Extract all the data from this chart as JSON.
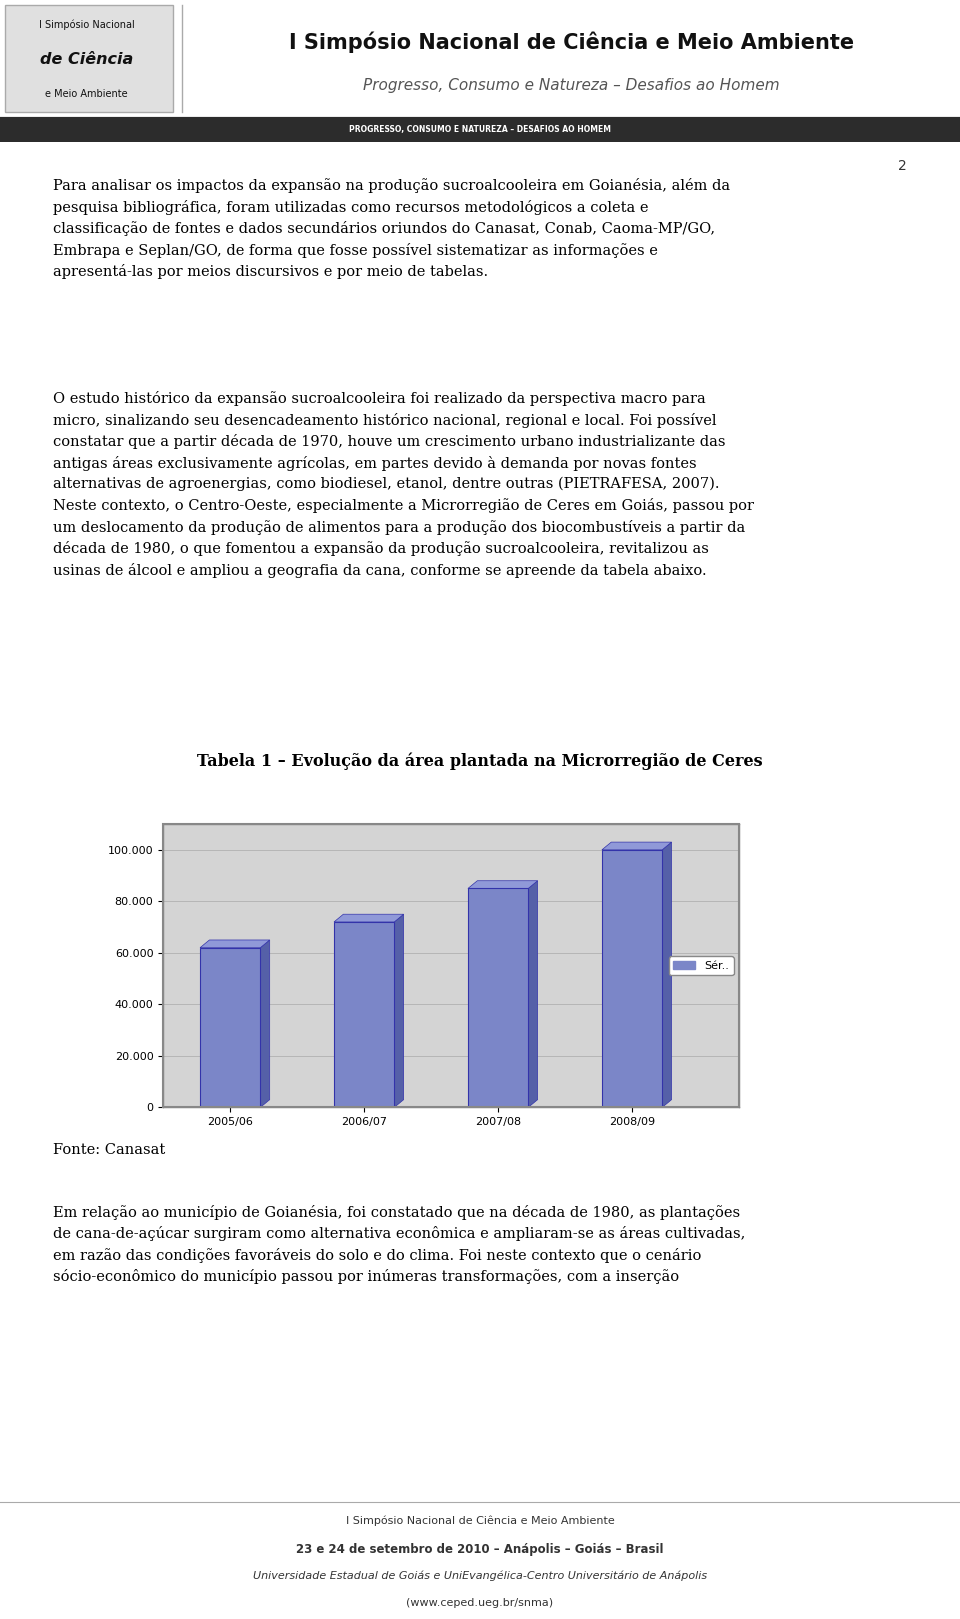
{
  "page_width": 9.6,
  "page_height": 16.19,
  "background_color": "#ffffff",
  "header": {
    "title_line1": "I Simpósio Nacional de Ciência e Meio Ambiente",
    "title_line2": "Progresso, Consumo e Natureza – Desafios ao Homem",
    "logo_text_line1": "I Simpósio Nacional",
    "logo_text_line2": "de Ciência",
    "logo_text_line3": "e Meio Ambiente"
  },
  "subheader": {
    "text": "PROGRESSO, CONSUMO E NATUREZA – DESAFIOS AO HOMEM",
    "bg_color": "#2c2c2c",
    "text_color": "#ffffff"
  },
  "para1": "Para analisar os impactos da expansão na produção sucroalcooleira em Goianésia, além da pesquisa bibliográfica, foram utilizadas como recursos metodológicos a coleta e classificação de fontes e dados secundários oriundos do Canasat, Conab, Caoma-MP/GO, Embrapa e Seplan/GO, de forma que fosse possível sistematizar as informações e apresentá-las por meios discursivos e por meio de tabelas.",
  "para2": "O estudo histórico da expansão sucroalcooleira foi realizado da perspectiva macro para micro, sinalizando seu desencadeamento histórico nacional, regional e local. Foi possível constatar que a partir década de 1970, houve um crescimento urbano industrializante das antigas áreas exclusivamente agrícolas, em partes devido à demanda por novas fontes alternativas de agroenergias, como biodiesel, etanol, dentre outras (PIETRAFESA, 2007). Neste contexto, o Centro-Oeste, especialmente a Microrregião de Ceres em Goiás, passou por um deslocamento da produção de alimentos para a produção dos biocombustíveis a partir da década de 1980, o que fomentou a expansão da produção sucroalcooleira, revitalizou as usinas de álcool e ampliou a geografia da cana, conforme se apreende da tabela abaixo.",
  "chart_title": "Tabela 1 – Evolução da área plantada na Microrregião de Ceres",
  "chart_categories": [
    "2005/06",
    "2006/07",
    "2007/08",
    "2008/09"
  ],
  "chart_values": [
    62000,
    72000,
    85000,
    100000
  ],
  "chart_ylabel_values": [
    0,
    20000,
    40000,
    60000,
    80000,
    100000
  ],
  "chart_ylabel_labels": [
    "0",
    "20.000",
    "40.000",
    "60.000",
    "80.000",
    "100.000"
  ],
  "chart_bar_color": "#7b86c8",
  "chart_bar_dark": "#5560a8",
  "chart_bar_light": "#9099d8",
  "chart_bar_edge_color": "#3333aa",
  "chart_legend_label": "Sér..",
  "chart_bg_color": "#d4d4d4",
  "fonte_text": "Fonte: Canasat",
  "para3": "Em relação ao município de Goianésia, foi constatado que na década de 1980, as plantações de cana-de-açúcar surgiram como alternativa econômica e ampliaram-se as áreas cultivadas, em razão das condições favoráveis do solo e do clima.  Foi neste contexto que o cenário sócio-econômico do município passou por inúmeras transformações, com a inserção",
  "footer_line1": "I Simpósio Nacional de Ciência e Meio Ambiente",
  "footer_line2": "23 e 24 de setembro de 2010 – Anápolis – Goiás – Brasil",
  "footer_line3": "Universidade Estadual de Goiás e UniEvangélica-Centro Universitário de Anápolis",
  "footer_line4": "(www.ceped.ueg.br/snma)",
  "page_number": "2"
}
